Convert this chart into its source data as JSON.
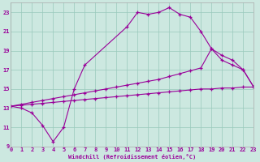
{
  "xlabel": "Windchill (Refroidissement éolien,°C)",
  "bg_color": "#cce8e0",
  "line_color": "#990099",
  "xlim": [
    0,
    23
  ],
  "ylim": [
    9,
    24
  ],
  "yticks": [
    9,
    11,
    13,
    15,
    17,
    19,
    21,
    23
  ],
  "xticks": [
    0,
    1,
    2,
    3,
    4,
    5,
    6,
    7,
    8,
    9,
    10,
    11,
    12,
    13,
    14,
    15,
    16,
    17,
    18,
    19,
    20,
    21,
    22,
    23
  ],
  "curve1_x": [
    0,
    1,
    2,
    3,
    4,
    5,
    6,
    7,
    11,
    12,
    13,
    14,
    15,
    16,
    17,
    18,
    19,
    20,
    21,
    22,
    23
  ],
  "curve1_y": [
    13.2,
    13.0,
    12.5,
    11.2,
    9.5,
    11.0,
    15.0,
    17.5,
    21.5,
    23.0,
    22.8,
    23.0,
    23.5,
    22.8,
    22.5,
    21.0,
    19.2,
    18.0,
    17.5,
    17.0,
    15.2
  ],
  "line2_x": [
    0,
    1,
    2,
    3,
    4,
    5,
    6,
    7,
    8,
    9,
    10,
    11,
    12,
    13,
    14,
    15,
    16,
    17,
    18,
    19,
    20,
    21,
    22,
    23
  ],
  "line2_y": [
    13.2,
    13.4,
    13.6,
    13.8,
    14.0,
    14.2,
    14.4,
    14.6,
    14.8,
    15.0,
    15.2,
    15.4,
    15.6,
    15.8,
    16.0,
    16.3,
    16.6,
    16.9,
    17.2,
    19.2,
    18.5,
    18.0,
    17.0,
    15.2
  ],
  "line3_x": [
    0,
    1,
    2,
    3,
    4,
    5,
    6,
    7,
    8,
    9,
    10,
    11,
    12,
    13,
    14,
    15,
    16,
    17,
    18,
    19,
    20,
    21,
    22,
    23
  ],
  "line3_y": [
    13.2,
    13.3,
    13.4,
    13.5,
    13.6,
    13.7,
    13.8,
    13.9,
    14.0,
    14.1,
    14.2,
    14.3,
    14.4,
    14.5,
    14.6,
    14.7,
    14.8,
    14.9,
    15.0,
    15.0,
    15.1,
    15.1,
    15.2,
    15.2
  ]
}
